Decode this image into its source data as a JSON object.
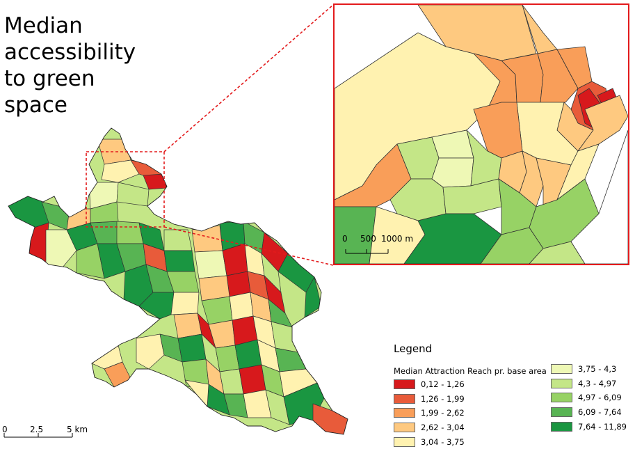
{
  "title_lines": [
    "Median",
    "accessibility",
    "to green",
    "space"
  ],
  "legend": {
    "title": "Legend",
    "subtitle": "Median Attraction Reach pr. base area",
    "classes": [
      {
        "label": "0,12 - 1,26",
        "color": "#d7191c"
      },
      {
        "label": "1,26 - 1,99",
        "color": "#e85b3a"
      },
      {
        "label": "1,99 - 2,62",
        "color": "#f99e59"
      },
      {
        "label": "2,62 - 3,04",
        "color": "#fec980"
      },
      {
        "label": "3,04 - 3,75",
        "color": "#fff2b0"
      },
      {
        "label": "3,75 - 4,3",
        "color": "#eef8b5"
      },
      {
        "label": "4,3 - 4,97",
        "color": "#c4e687"
      },
      {
        "label": "4,97 - 6,09",
        "color": "#97d265"
      },
      {
        "label": "6,09 - 7,64",
        "color": "#58b453"
      },
      {
        "label": "7,64 - 11,89",
        "color": "#1a9641"
      }
    ]
  },
  "main_scalebar": {
    "labels": [
      "0",
      "2.5",
      "5 km"
    ]
  },
  "inset_scalebar": {
    "labels": [
      "0",
      "500",
      "1000 m"
    ]
  },
  "colors": {
    "highlight": "#e31a1c",
    "outline": "#333333"
  }
}
